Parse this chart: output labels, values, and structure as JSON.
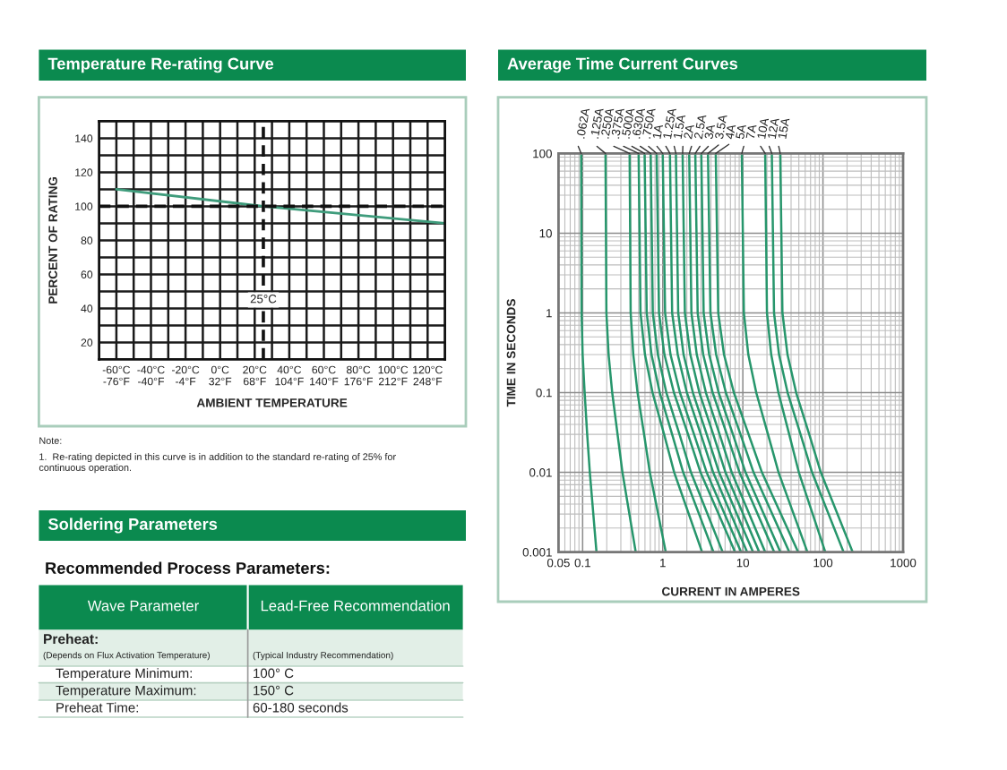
{
  "chart_data": [
    {
      "type": "line",
      "title": "Temperature Re-rating Curve",
      "xlabel": "AMBIENT TEMPERATURE",
      "ylabel": "PERCENT OF RATING",
      "x": [
        -60,
        25,
        130
      ],
      "series": [
        {
          "color": "#3f9c7c",
          "values": [
            110,
            100,
            90
          ]
        }
      ],
      "xlim": [
        -70,
        130
      ],
      "xticks": [
        {
          "value": -60,
          "label": "-60°C"
        },
        {
          "value": -50,
          "label": null
        },
        {
          "value": -40,
          "label": "-40°C"
        },
        {
          "value": -30,
          "label": null
        },
        {
          "value": -20,
          "label": "-20°C"
        },
        {
          "value": -10,
          "label": null
        },
        {
          "value": 0,
          "label": "0°C"
        },
        {
          "value": 10,
          "label": null
        },
        {
          "value": 20,
          "label": "20°C"
        },
        {
          "value": 30,
          "label": null
        },
        {
          "value": 40,
          "label": "40°C"
        },
        {
          "value": 50,
          "label": null
        },
        {
          "value": 60,
          "label": "60°C"
        },
        {
          "value": 70,
          "label": null
        },
        {
          "value": 80,
          "label": "80°C"
        },
        {
          "value": 90,
          "label": null
        },
        {
          "value": 100,
          "label": "100°C"
        },
        {
          "value": 110,
          "label": null
        },
        {
          "value": 120,
          "label": "120°C"
        }
      ],
      "x2lim": [
        -94,
        266
      ],
      "x2ticks": [
        {
          "value": -76,
          "label": "-76°F"
        },
        {
          "value": -40,
          "label": "-40°F"
        },
        {
          "value": -4,
          "label": "-4°F"
        },
        {
          "value": 32,
          "label": "32°F"
        },
        {
          "value": 68,
          "label": "68°F"
        },
        {
          "value": 104,
          "label": "104°F"
        },
        {
          "value": 140,
          "label": "140°F"
        },
        {
          "value": 176,
          "label": "176°F"
        },
        {
          "value": 212,
          "label": "212°F"
        },
        {
          "value": 248,
          "label": "248°F"
        }
      ],
      "ylim": [
        10,
        150
      ],
      "yticks": [
        20,
        {
          "value": 30,
          "label": null
        },
        40,
        {
          "value": 50,
          "label": null
        },
        60,
        {
          "value": 70,
          "label": null
        },
        80,
        {
          "value": 90,
          "label": null
        },
        100,
        {
          "value": 110,
          "label": null
        },
        120,
        {
          "value": 130,
          "label": null
        },
        140
      ],
      "grid": true,
      "ref_lines": [
        {
          "axis": "x",
          "value": 25,
          "label": "25°C",
          "line_style": "dashed"
        },
        {
          "axis": "y",
          "value": 100,
          "line_style": "dashed"
        }
      ],
      "annotations": [
        "Note:",
        "1.  Re-rating depicted in this curve is in addition to the standard re-rating of 25% for continuous operation."
      ]
    },
    {
      "type": "line",
      "title": "Average Time Current Curves",
      "xlabel": "CURRENT IN AMPERES",
      "ylabel": "TIME IN SECONDS",
      "log": "xy",
      "xlim": [
        0.05,
        1000
      ],
      "xticks": [
        0.05,
        0.1,
        1,
        10,
        100,
        1000
      ],
      "ylim": [
        0.001,
        100
      ],
      "yticks": [
        0.001,
        0.01,
        0.1,
        1,
        10,
        100
      ],
      "grid": true,
      "series": [
        {
          "name": ".062A",
          "color": "#27966c",
          "x": [
            0.096,
            0.097,
            0.1,
            0.106,
            0.114,
            0.123,
            0.149
          ],
          "values": [
            100,
            1,
            0.3,
            0.1,
            0.03,
            0.01,
            0.001
          ]
        },
        {
          "name": ".125A",
          "color": "#27966c",
          "x": [
            0.193,
            0.198,
            0.211,
            0.234,
            0.273,
            0.314,
            0.46
          ],
          "values": [
            100,
            1,
            0.3,
            0.1,
            0.03,
            0.01,
            0.001
          ]
        },
        {
          "name": ".250A",
          "color": "#27966c",
          "x": [
            0.386,
            0.398,
            0.429,
            0.485,
            0.585,
            0.69,
            1.09
          ],
          "values": [
            100,
            1,
            0.3,
            0.1,
            0.03,
            0.01,
            0.001
          ]
        },
        {
          "name": ".375A",
          "color": "#27966c",
          "x": [
            0.5,
            0.528,
            0.6,
            0.746,
            1.04,
            1.39,
            3.1
          ],
          "values": [
            100,
            1,
            0.3,
            0.1,
            0.03,
            0.01,
            0.001
          ]
        },
        {
          "name": ".500A",
          "color": "#27966c",
          "x": [
            0.594,
            0.631,
            0.724,
            0.918,
            1.31,
            1.8,
            4.3
          ],
          "values": [
            100,
            1,
            0.3,
            0.1,
            0.03,
            0.01,
            0.001
          ]
        },
        {
          "name": ".630A",
          "color": "#27966c",
          "x": [
            0.707,
            0.752,
            0.869,
            1.11,
            1.62,
            2.25,
            5.6
          ],
          "values": [
            100,
            1,
            0.3,
            0.1,
            0.03,
            0.01,
            0.001
          ]
        },
        {
          "name": ".750A",
          "color": "#27966c",
          "x": [
            0.84,
            0.898,
            1.05,
            1.38,
            2.07,
            2.96,
            8.0
          ],
          "values": [
            100,
            1,
            0.3,
            0.1,
            0.03,
            0.01,
            0.001
          ]
        },
        {
          "name": "1A",
          "color": "#27966c",
          "x": [
            1.0,
            1.07,
            1.25,
            1.64,
            2.46,
            3.53,
            9.5
          ],
          "values": [
            100,
            1,
            0.3,
            0.1,
            0.03,
            0.01,
            0.001
          ]
        },
        {
          "name": "1.25A",
          "color": "#27966c",
          "x": [
            1.23,
            1.31,
            1.54,
            2.0,
            2.99,
            4.26,
            11.3
          ],
          "values": [
            100,
            1,
            0.3,
            0.1,
            0.03,
            0.01,
            0.001
          ]
        },
        {
          "name": "1.5A",
          "color": "#27966c",
          "x": [
            1.46,
            1.56,
            1.82,
            2.38,
            3.54,
            5.05,
            13.4
          ],
          "values": [
            100,
            1,
            0.3,
            0.1,
            0.03,
            0.01,
            0.001
          ]
        },
        {
          "name": "2A",
          "color": "#27966c",
          "x": [
            1.77,
            1.89,
            2.21,
            2.87,
            4.27,
            6.07,
            16
          ],
          "values": [
            100,
            1,
            0.3,
            0.1,
            0.03,
            0.01,
            0.001
          ]
        },
        {
          "name": "2.5A",
          "color": "#27966c",
          "x": [
            2.14,
            2.28,
            2.66,
            3.46,
            5.13,
            7.26,
            19
          ],
          "values": [
            100,
            1,
            0.3,
            0.1,
            0.03,
            0.01,
            0.001
          ]
        },
        {
          "name": "3A",
          "color": "#27966c",
          "x": [
            2.55,
            2.73,
            3.2,
            4.2,
            6.32,
            9.08,
            24.6
          ],
          "values": [
            100,
            1,
            0.3,
            0.1,
            0.03,
            0.01,
            0.001
          ]
        },
        {
          "name": "3.5A",
          "color": "#27966c",
          "x": [
            3.03,
            3.24,
            3.8,
            4.99,
            7.52,
            10.8,
            29.4
          ],
          "values": [
            100,
            1,
            0.3,
            0.1,
            0.03,
            0.01,
            0.001
          ]
        },
        {
          "name": "4A",
          "color": "#27966c",
          "x": [
            3.67,
            3.94,
            4.64,
            6.14,
            9.35,
            13.6,
            38
          ],
          "values": [
            100,
            1,
            0.3,
            0.1,
            0.03,
            0.01,
            0.001
          ]
        },
        {
          "name": "5A",
          "color": "#27966c",
          "x": [
            4.59,
            4.93,
            5.82,
            7.73,
            11.8,
            17.3,
            49
          ],
          "values": [
            100,
            1,
            0.3,
            0.1,
            0.03,
            0.01,
            0.001
          ]
        },
        {
          "name": "7A",
          "color": "#27966c",
          "x": [
            9.7,
            10.3,
            11.7,
            14.7,
            20.6,
            27.9,
            64
          ],
          "values": [
            100,
            1,
            0.3,
            0.1,
            0.03,
            0.01,
            0.001
          ]
        },
        {
          "name": "10A",
          "color": "#27966c",
          "x": [
            19,
            20,
            22.6,
            27.8,
            37.9,
            50,
            107
          ],
          "values": [
            100,
            1,
            0.3,
            0.1,
            0.03,
            0.01,
            0.001
          ]
        },
        {
          "name": "12A",
          "color": "#27966c",
          "x": [
            23,
            24.5,
            28.3,
            36.2,
            52.5,
            73.1,
            181
          ],
          "values": [
            100,
            1,
            0.3,
            0.1,
            0.03,
            0.01,
            0.001
          ]
        },
        {
          "name": "15A",
          "color": "#27966c",
          "x": [
            29.3,
            31.2,
            36.1,
            46.3,
            67.4,
            94,
            235
          ],
          "values": [
            100,
            1,
            0.3,
            0.1,
            0.03,
            0.01,
            0.001
          ]
        }
      ]
    },
    {
      "type": "other",
      "title": "Soldering Parameters",
      "subtitle": "Recommended Process Parameters:",
      "annotations": [
        "Wave Parameter",
        "Lead-Free Recommendation",
        "Preheat:",
        "(Depends on Flux Activation Temperature)",
        "(Typical Industry Recommendation)",
        "Temperature Minimum:",
        "100° C",
        "Temperature Maximum:",
        "150° C",
        "Preheat Time:",
        "60-180 seconds"
      ]
    }
  ]
}
